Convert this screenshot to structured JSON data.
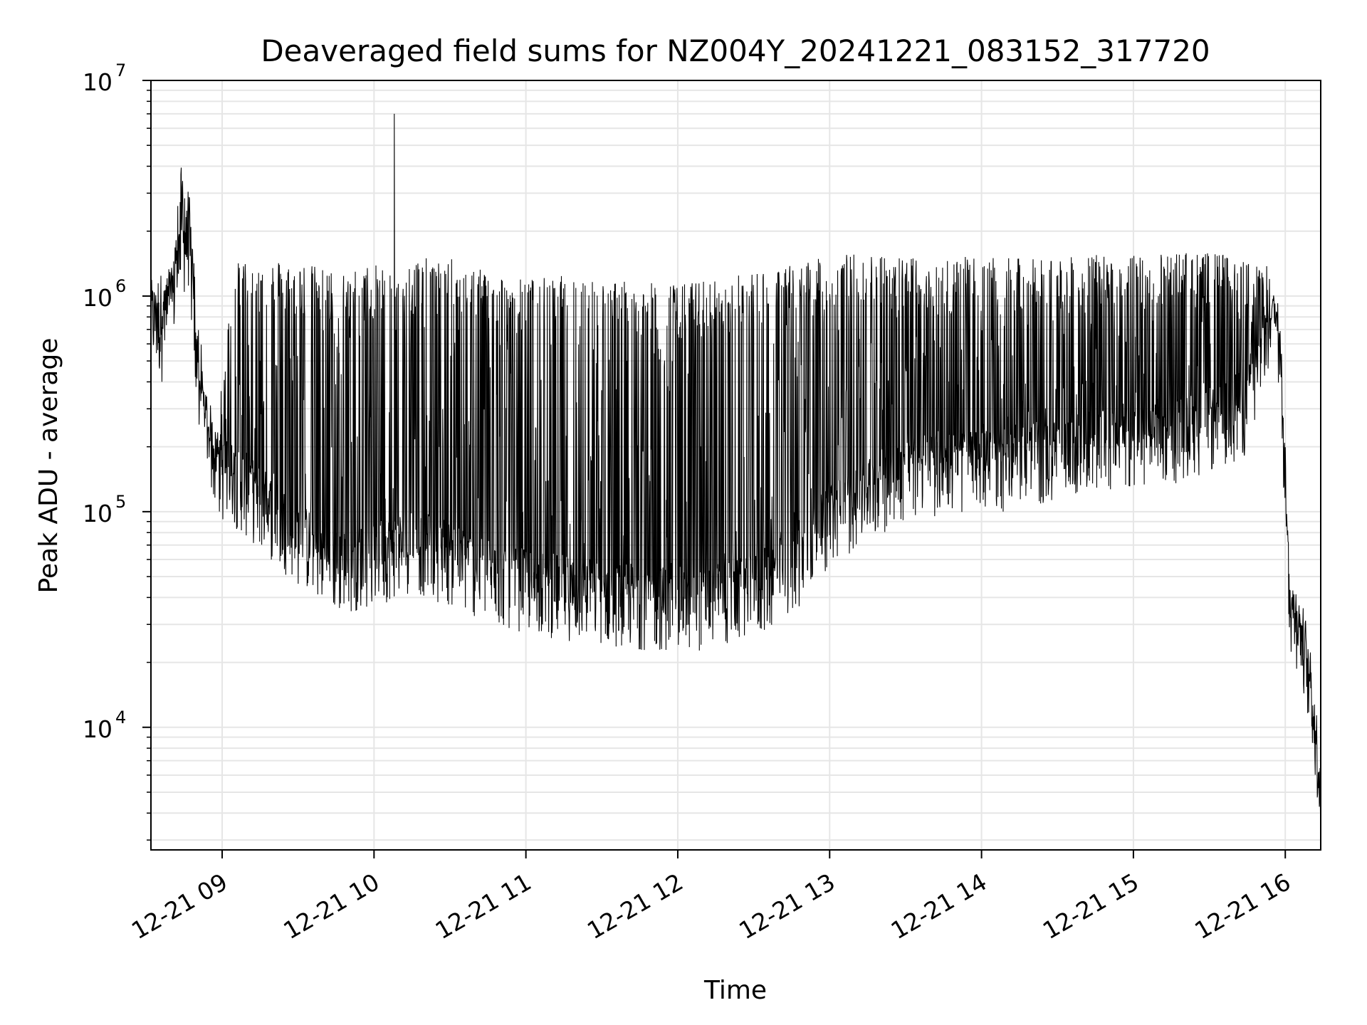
{
  "chart_data": {
    "type": "line",
    "title": "Deaveraged field sums for NZ004Y_20241221_083152_317720",
    "xlabel": "Time",
    "ylabel": "Peak ADU - average",
    "yscale": "log",
    "xlim": [
      "2024-12-21T08:31:52",
      "2024-12-21T16:14:00"
    ],
    "ylim": [
      2700,
      10000000
    ],
    "x_tick_labels": [
      "12-21 09",
      "12-21 10",
      "12-21 11",
      "12-21 12",
      "12-21 13",
      "12-21 14",
      "12-21 15",
      "12-21 16"
    ],
    "x_tick_values": [
      "2024-12-21T09:00:00",
      "2024-12-21T10:00:00",
      "2024-12-21T11:00:00",
      "2024-12-21T12:00:00",
      "2024-12-21T13:00:00",
      "2024-12-21T14:00:00",
      "2024-12-21T15:00:00",
      "2024-12-21T16:00:00"
    ],
    "y_ticks": [
      {
        "base": "10",
        "exp": "4",
        "value": 10000
      },
      {
        "base": "10",
        "exp": "5",
        "value": 100000
      },
      {
        "base": "10",
        "exp": "6",
        "value": 1000000
      },
      {
        "base": "10",
        "exp": "7",
        "value": 10000000
      }
    ],
    "grid": true,
    "line_color": "#000000",
    "grid_color": "#e6e6e6",
    "series": [
      {
        "x": [
          "2024-12-21T08:32:00",
          "2024-12-21T08:36:00",
          "2024-12-21T08:40:00",
          "2024-12-21T08:44:00",
          "2024-12-21T08:47:00",
          "2024-12-21T08:50:00",
          "2024-12-21T08:54:00",
          "2024-12-21T08:58:00",
          "2024-12-21T09:05:00",
          "2024-12-21T09:15:00",
          "2024-12-21T09:30:00",
          "2024-12-21T09:45:00",
          "2024-12-21T10:00:00",
          "2024-12-21T10:15:00",
          "2024-12-21T10:30:00",
          "2024-12-21T10:45:00",
          "2024-12-21T11:00:00",
          "2024-12-21T11:15:00",
          "2024-12-21T11:30:00",
          "2024-12-21T11:45:00",
          "2024-12-21T12:00:00",
          "2024-12-21T12:15:00",
          "2024-12-21T12:30:00",
          "2024-12-21T12:45:00",
          "2024-12-21T13:00:00",
          "2024-12-21T13:15:00",
          "2024-12-21T13:30:00",
          "2024-12-21T13:45:00",
          "2024-12-21T14:00:00",
          "2024-12-21T14:15:00",
          "2024-12-21T14:30:00",
          "2024-12-21T14:45:00",
          "2024-12-21T15:00:00",
          "2024-12-21T15:15:00",
          "2024-12-21T15:30:00",
          "2024-12-21T15:45:00",
          "2024-12-21T15:52:00",
          "2024-12-21T15:55:00",
          "2024-12-21T15:58:00",
          "2024-12-21T16:00:00",
          "2024-12-21T16:02:00",
          "2024-12-21T16:05:00",
          "2024-12-21T16:08:00",
          "2024-12-21T16:11:00",
          "2024-12-21T16:14:00"
        ],
        "baseline": [
          800000,
          650000,
          900000,
          1600000,
          1800000,
          400000,
          250000,
          150000,
          140000,
          110000,
          75000,
          55000,
          60000,
          70000,
          60000,
          50000,
          45000,
          42000,
          40000,
          38000,
          37000,
          38000,
          42000,
          55000,
          90000,
          120000,
          150000,
          160000,
          160000,
          170000,
          180000,
          200000,
          200000,
          220000,
          250000,
          300000,
          600000,
          800000,
          600000,
          100000,
          35000,
          30000,
          22000,
          12000,
          5000
        ],
        "peak": [
          1100000,
          1300000,
          1400000,
          4200000,
          3000000,
          1000000,
          300000,
          250000,
          1500000,
          1500000,
          1450000,
          1300000,
          1400000,
          1500000,
          1500000,
          1300000,
          1200000,
          1250000,
          1200000,
          1150000,
          1150000,
          1200000,
          1300000,
          1400000,
          1550000,
          1600000,
          1550000,
          1550000,
          1500000,
          1500000,
          1500000,
          1550000,
          1550000,
          1600000,
          1600000,
          1500000,
          1500000,
          1050000,
          900000,
          200000,
          48000,
          40000,
          28000,
          13000,
          6000
        ]
      }
    ],
    "annotations": [
      {
        "x": "2024-12-21T10:08:00",
        "y": 7000000,
        "label": ""
      }
    ]
  }
}
